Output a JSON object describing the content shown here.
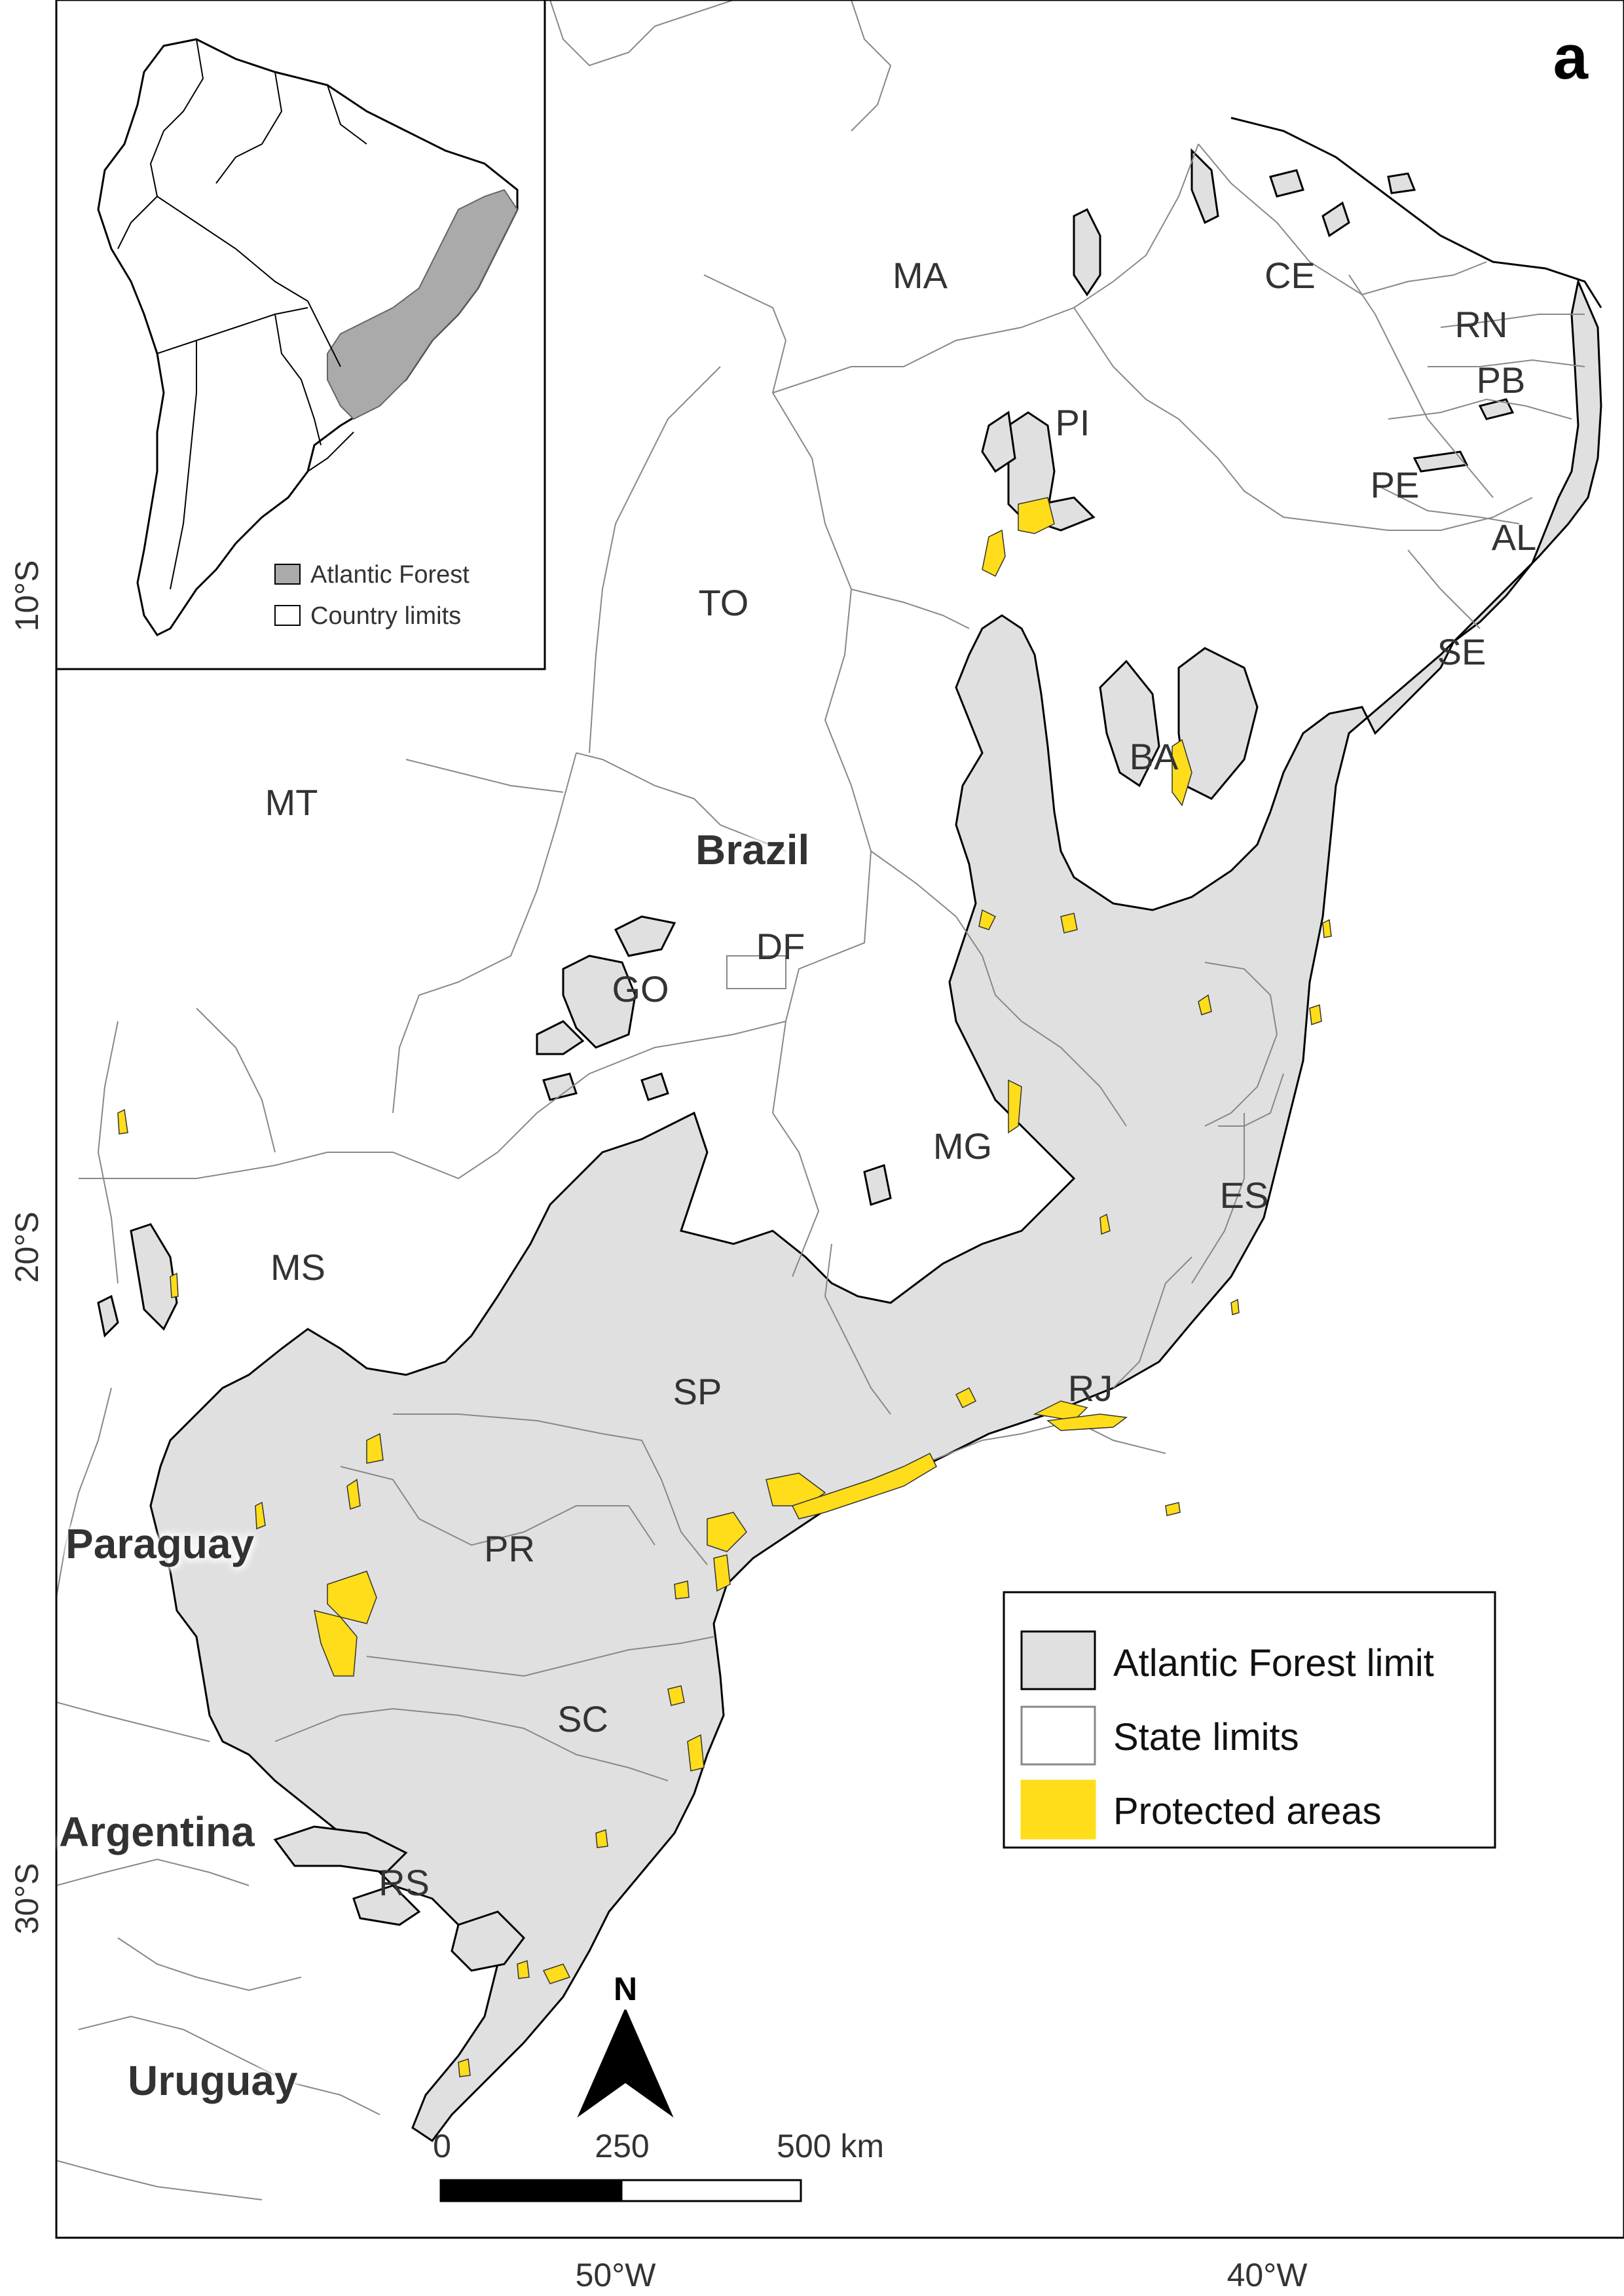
{
  "panel_label": "a",
  "map": {
    "states": [
      "MA",
      "CE",
      "RN",
      "PB",
      "PI",
      "PE",
      "AL",
      "SE",
      "TO",
      "BA",
      "MT",
      "GO",
      "DF",
      "MG",
      "ES",
      "MS",
      "SP",
      "RJ",
      "PR",
      "SC",
      "RS"
    ],
    "countries": [
      "Brazil",
      "Paraguay",
      "Argentina",
      "Uruguay"
    ],
    "lat_ticks": [
      "10°S",
      "20°S",
      "30°S"
    ],
    "lon_ticks": [
      "50°W",
      "40°W"
    ],
    "colors": {
      "atlantic_forest": "#e0e0e0",
      "protected_areas": "#ffdd1a",
      "state_limits": "#888888",
      "background": "#ffffff"
    }
  },
  "inset": {
    "legend": {
      "atlantic_forest": "Atlantic Forest",
      "country_limits": "Country limits"
    },
    "colors": {
      "forest": "#aaaaaa"
    }
  },
  "legend": {
    "forest_limit": "Atlantic Forest limit",
    "state_limits": "State limits",
    "protected_areas": "Protected areas"
  },
  "north_arrow": {
    "label": "N",
    "icon": "north-arrow-icon"
  },
  "scale_bar": {
    "tick_0": "0",
    "tick_250": "250",
    "tick_500": "500 km"
  }
}
